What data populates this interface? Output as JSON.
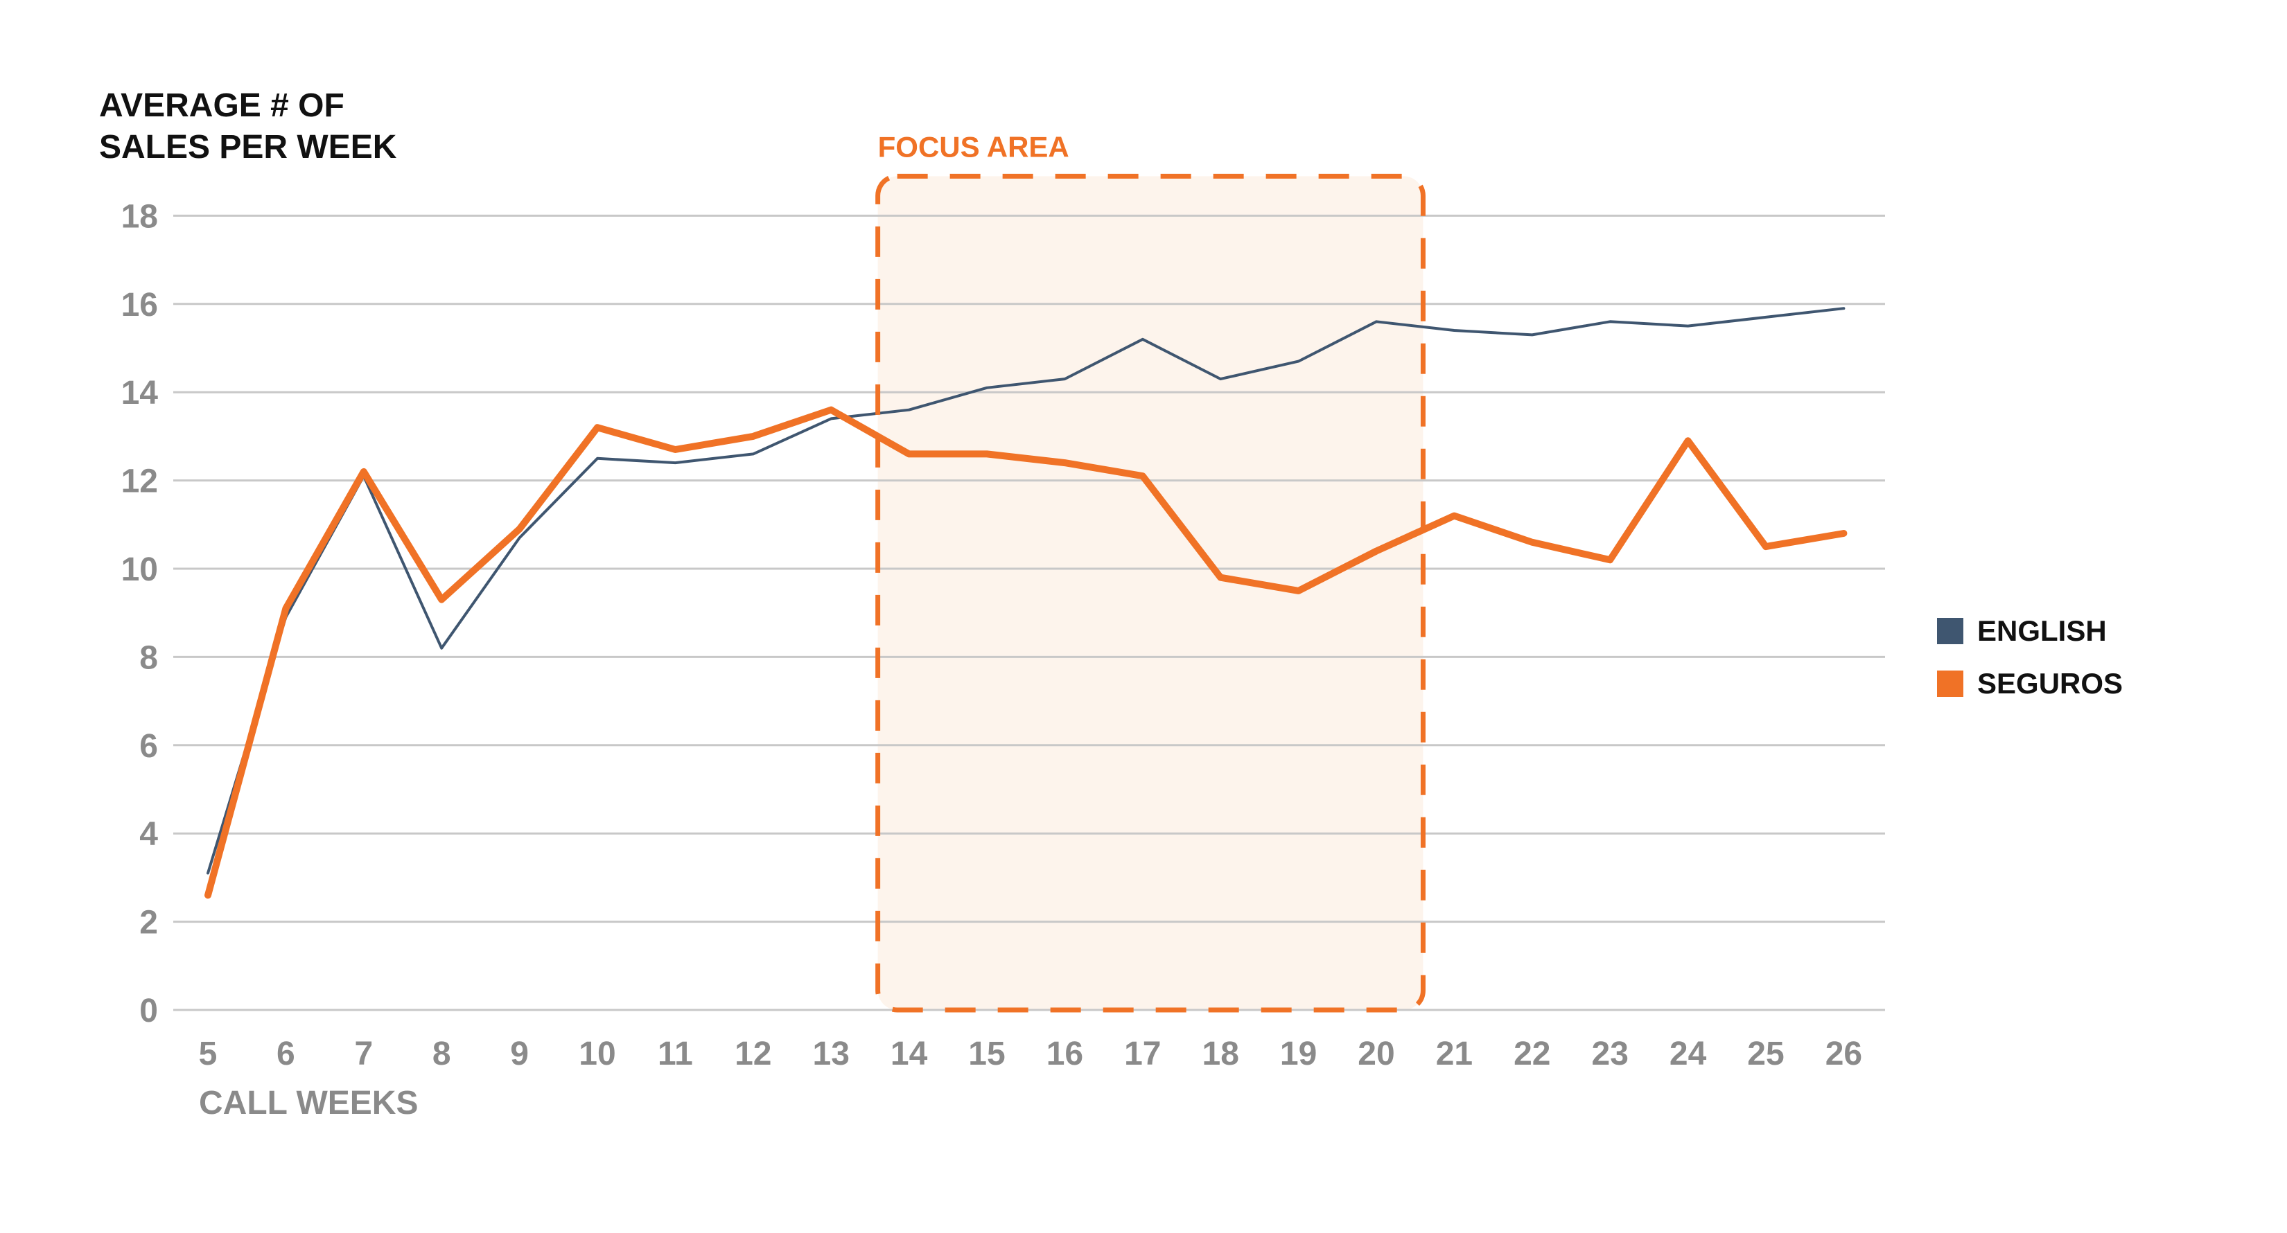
{
  "chart_data": {
    "type": "line",
    "ylabel_lines": [
      "AVERAGE # OF",
      "SALES PER WEEK"
    ],
    "xlabel": "CALL WEEKS",
    "x": [
      5,
      6,
      7,
      8,
      9,
      10,
      11,
      12,
      13,
      14,
      15,
      16,
      17,
      18,
      19,
      20,
      21,
      22,
      23,
      24,
      25,
      26
    ],
    "ylim": [
      0,
      18
    ],
    "yticks": [
      0,
      2,
      4,
      6,
      8,
      10,
      12,
      14,
      16,
      18
    ],
    "grid": true,
    "legend_position": "right",
    "series": [
      {
        "name": "ENGLISH",
        "color": "#3f5670",
        "values": [
          3.1,
          8.9,
          12.1,
          8.2,
          10.7,
          12.5,
          12.4,
          12.6,
          13.4,
          13.6,
          14.1,
          14.3,
          15.2,
          14.3,
          14.7,
          15.6,
          15.4,
          15.3,
          15.6,
          15.5,
          15.7,
          15.9
        ]
      },
      {
        "name": "SEGUROS",
        "color": "#f07226",
        "values": [
          2.6,
          9.1,
          12.2,
          9.3,
          10.9,
          13.2,
          12.7,
          13.0,
          13.6,
          12.6,
          12.6,
          12.4,
          12.1,
          9.8,
          9.5,
          10.4,
          11.2,
          10.6,
          10.2,
          12.9,
          10.5,
          10.8
        ]
      }
    ],
    "annotations": [
      {
        "text": "FOCUS AREA",
        "x_start": 13.6,
        "x_end": 20.6,
        "color": "#f07226"
      }
    ]
  }
}
